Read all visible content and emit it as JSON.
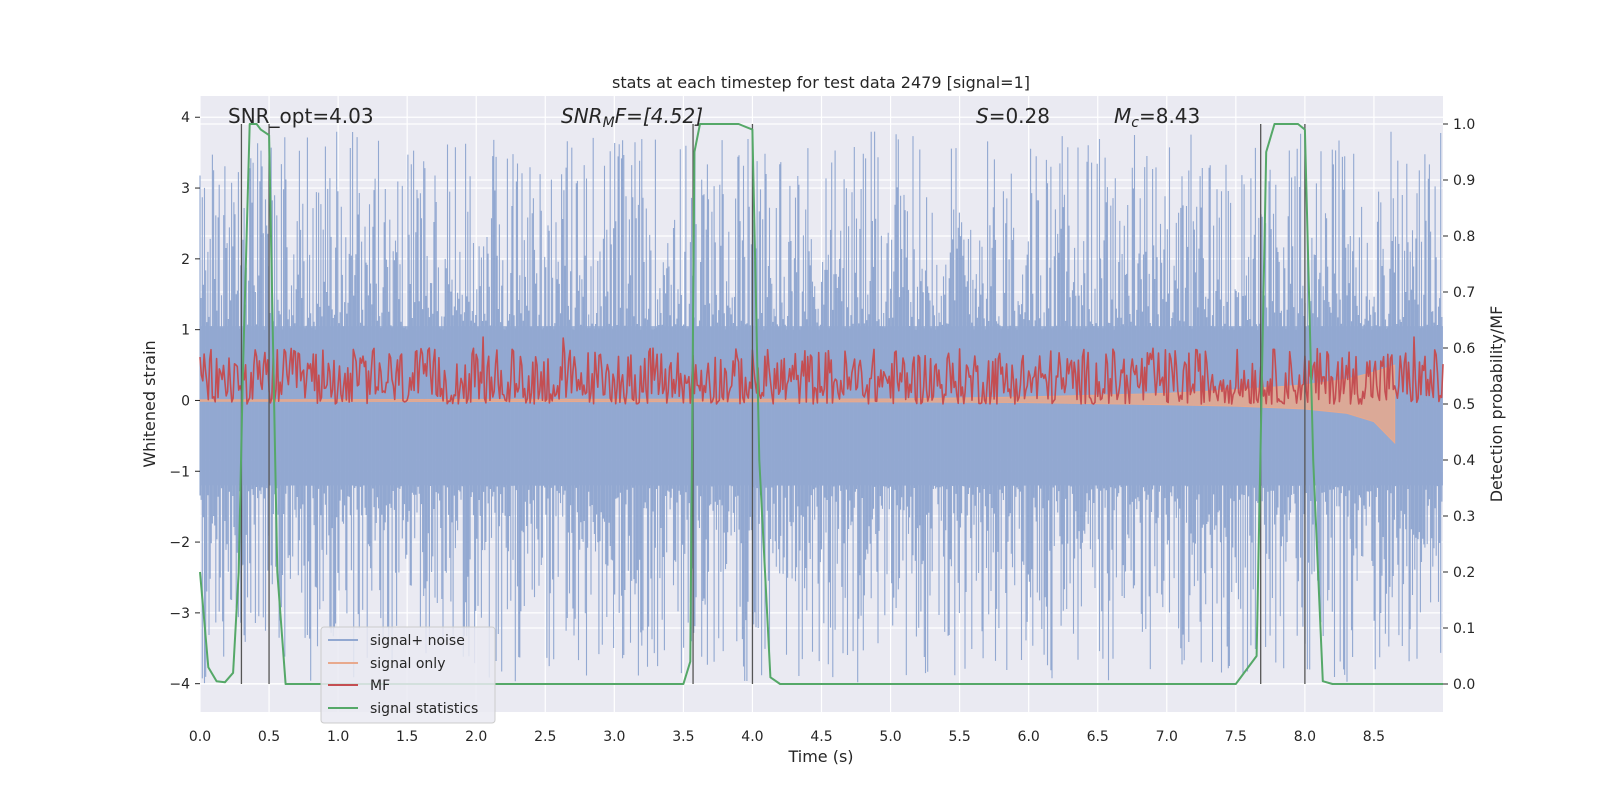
{
  "chart_data": {
    "type": "line",
    "title": "stats at each timestep for test data 2479 [signal=1]",
    "xlabel": "Time (s)",
    "ylabel_left": "Whitened strain",
    "ylabel_right": "Detection probability/MF",
    "xlim": [
      0.0,
      9.0
    ],
    "ylim_left": [
      -4.4,
      4.3
    ],
    "ylim_right": [
      -0.05,
      1.05
    ],
    "x_ticks": [
      "0.0",
      "0.5",
      "1.0",
      "1.5",
      "2.0",
      "2.5",
      "3.0",
      "3.5",
      "4.0",
      "4.5",
      "5.0",
      "5.5",
      "6.0",
      "6.5",
      "7.0",
      "7.5",
      "8.0",
      "8.5"
    ],
    "y_left_ticks": [
      "4",
      "3",
      "2",
      "1",
      "0",
      "−1",
      "−2",
      "−3",
      "−4"
    ],
    "y_right_ticks": [
      "1.0",
      "0.9",
      "0.8",
      "0.7",
      "0.6",
      "0.5",
      "0.4",
      "0.3",
      "0.2",
      "0.1",
      "0.0"
    ],
    "grid": true,
    "legend_position": "lower-left",
    "annotations": {
      "snr_opt": "SNR_opt=4.03",
      "snr_mf_prefix": "SNR",
      "snr_mf_sub": "M",
      "snr_mf_suffix": "F=[4.52]",
      "s_var": "S",
      "s_val": "=0.28",
      "mc_var": "M",
      "mc_sub": "c",
      "mc_val": "=8.43"
    },
    "series": [
      {
        "name": "signal+ noise",
        "color": "#92a8d1",
        "envelope": {
          "mean": 0.0,
          "peak_upper": 3.8,
          "peak_lower": -4.0
        }
      },
      {
        "name": "signal only",
        "color": "#e8a98d",
        "x": [
          0.0,
          5.0,
          6.0,
          7.0,
          7.5,
          8.0,
          8.3,
          8.5,
          8.65
        ],
        "upper": [
          0.01,
          0.02,
          0.05,
          0.1,
          0.15,
          0.22,
          0.3,
          0.4,
          0.5
        ],
        "lower": [
          -0.01,
          -0.02,
          -0.03,
          -0.06,
          -0.08,
          -0.12,
          -0.18,
          -0.3,
          -0.6
        ]
      },
      {
        "name": "MF",
        "color": "#c44e52",
        "envelope": {
          "mean_right": 0.55,
          "min_right": 0.5,
          "max_right": 0.63
        }
      },
      {
        "name": "signal statistics",
        "color": "#55a868",
        "x": [
          0.0,
          0.06,
          0.12,
          0.18,
          0.24,
          0.28,
          0.31,
          0.36,
          0.41,
          0.44,
          0.5,
          0.56,
          0.62,
          0.68,
          0.75,
          1.0,
          2.0,
          3.0,
          3.5,
          3.55,
          3.58,
          3.62,
          3.7,
          3.8,
          3.9,
          4.0,
          4.05,
          4.13,
          4.2,
          5.0,
          6.0,
          7.0,
          7.5,
          7.65,
          7.72,
          7.78,
          7.85,
          7.95,
          8.0,
          8.06,
          8.13,
          8.2,
          9.0
        ],
        "y": [
          0.2,
          0.03,
          0.005,
          0.003,
          0.02,
          0.2,
          0.55,
          1.0,
          1.0,
          0.99,
          0.98,
          0.2,
          0.0,
          0.0,
          0.0,
          0.0,
          0.0,
          0.0,
          0.0,
          0.04,
          0.95,
          1.0,
          1.0,
          1.0,
          1.0,
          0.99,
          0.4,
          0.012,
          0.0,
          0.0,
          0.0,
          0.0,
          0.0,
          0.05,
          0.95,
          1.0,
          1.0,
          1.0,
          0.99,
          0.4,
          0.005,
          0.0,
          0.0
        ]
      }
    ],
    "vertical_markers_x": [
      0.3,
      0.5,
      3.57,
      4.0,
      7.68,
      8.0
    ],
    "marker_right_range": [
      0.0,
      1.0
    ]
  }
}
